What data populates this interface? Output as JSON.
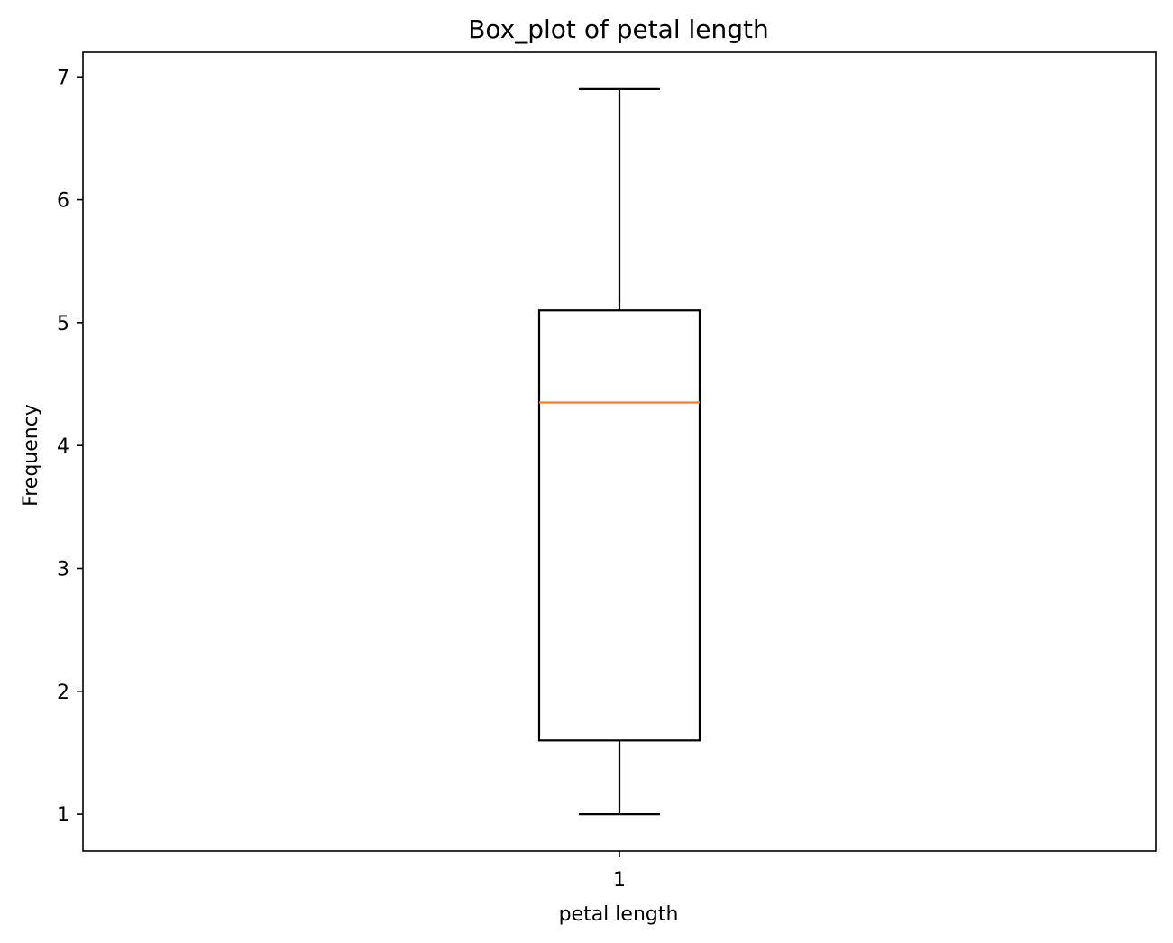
{
  "chart_data": {
    "type": "box",
    "title": "Box_plot of petal length",
    "xlabel": "petal length",
    "ylabel": "Frequency",
    "categories": [
      "1"
    ],
    "boxes": [
      {
        "category": "1",
        "whisker_low": 1.0,
        "q1": 1.6,
        "median": 4.35,
        "q3": 5.1,
        "whisker_high": 6.9
      }
    ],
    "ylim": [
      0.7,
      7.2
    ],
    "yticks": [
      1,
      2,
      3,
      4,
      5,
      6,
      7
    ],
    "grid": false,
    "colors": {
      "box": "#000000",
      "median": "#ff7f0e",
      "axes": "#000000",
      "background": "#ffffff"
    }
  }
}
